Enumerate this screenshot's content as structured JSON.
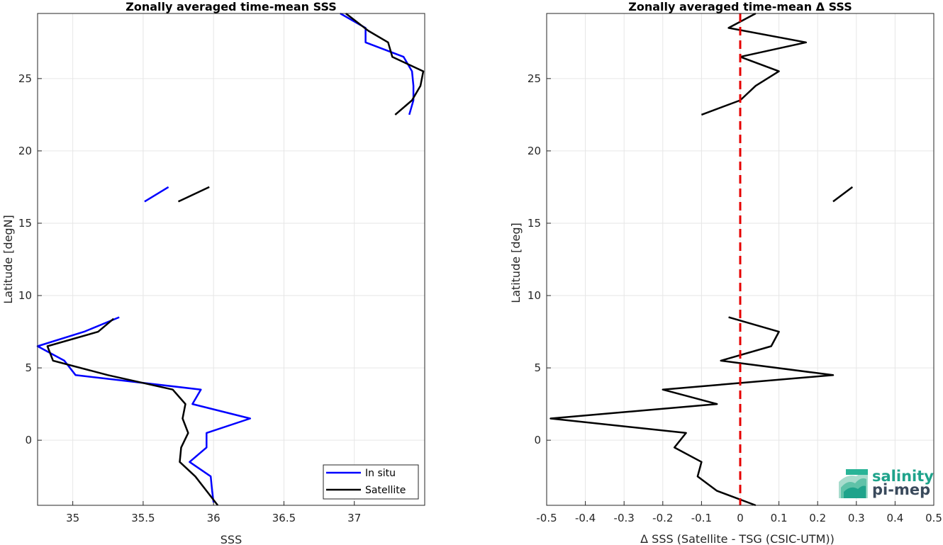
{
  "chart_data": [
    {
      "type": "line",
      "title": "Zonally averaged time-mean SSS",
      "xlabel": "SSS",
      "ylabel": "Latitude [degN]",
      "xlim": [
        34.75,
        37.5
      ],
      "ylim": [
        -4.5,
        29.5
      ],
      "xticks": [
        35,
        35.5,
        36,
        36.5,
        37
      ],
      "yticks": [
        0,
        5,
        10,
        15,
        20,
        25
      ],
      "grid": true,
      "legend": "bottom-right",
      "series": [
        {
          "name": "In situ",
          "color": "#0000ff",
          "segments": [
            [
              [
                36.0,
                -4.3
              ],
              [
                35.99,
                -3.5
              ],
              [
                35.98,
                -2.5
              ],
              [
                35.83,
                -1.5
              ],
              [
                35.95,
                -0.5
              ],
              [
                35.95,
                0.5
              ],
              [
                36.26,
                1.5
              ],
              [
                35.85,
                2.5
              ],
              [
                35.91,
                3.5
              ],
              [
                35.02,
                4.5
              ],
              [
                34.94,
                5.5
              ],
              [
                34.75,
                6.5
              ],
              [
                35.08,
                7.5
              ],
              [
                35.33,
                8.5
              ]
            ],
            [
              [
                35.51,
                16.5
              ],
              [
                35.68,
                17.5
              ]
            ],
            [
              [
                37.39,
                22.5
              ],
              [
                37.42,
                23.5
              ],
              [
                37.42,
                24.5
              ],
              [
                37.41,
                25.5
              ],
              [
                37.35,
                26.5
              ],
              [
                37.08,
                27.5
              ],
              [
                37.08,
                28.5
              ],
              [
                36.9,
                29.5
              ]
            ]
          ]
        },
        {
          "name": "Satellite",
          "color": "#000000",
          "segments": [
            [
              [
                36.03,
                -4.5
              ],
              [
                35.95,
                -3.5
              ],
              [
                35.87,
                -2.5
              ],
              [
                35.76,
                -1.5
              ],
              [
                35.77,
                -0.5
              ],
              [
                35.82,
                0.5
              ],
              [
                35.78,
                1.5
              ],
              [
                35.8,
                2.5
              ],
              [
                35.71,
                3.5
              ],
              [
                35.25,
                4.5
              ],
              [
                34.86,
                5.5
              ],
              [
                34.82,
                6.5
              ],
              [
                35.18,
                7.5
              ],
              [
                35.29,
                8.4
              ]
            ],
            [
              [
                35.75,
                16.5
              ],
              [
                35.97,
                17.5
              ]
            ],
            [
              [
                37.29,
                22.5
              ],
              [
                37.41,
                23.5
              ],
              [
                37.47,
                24.5
              ],
              [
                37.49,
                25.5
              ],
              [
                37.27,
                26.5
              ],
              [
                37.24,
                27.5
              ],
              [
                37.1,
                28.3
              ],
              [
                36.94,
                29.5
              ]
            ]
          ]
        }
      ]
    },
    {
      "type": "line",
      "title": "Zonally averaged time-mean Δ SSS",
      "xlabel": "Δ SSS (Satellite - TSG (CSIC-UTM))",
      "ylabel": "Latitude [deg]",
      "xlim": [
        -0.5,
        0.5
      ],
      "ylim": [
        -4.5,
        29.5
      ],
      "xticks": [
        -0.5,
        -0.4,
        -0.3,
        -0.2,
        -0.1,
        0,
        0.1,
        0.2,
        0.3,
        0.4,
        0.5
      ],
      "xticklabels": [
        "-0.5",
        "-0.4",
        "-0.3",
        "-0.2",
        "-0.1",
        "0",
        "0.1",
        "0.2",
        "0.3",
        "0.4",
        "0.5"
      ],
      "yticks": [
        0,
        5,
        10,
        15,
        20,
        25
      ],
      "grid": true,
      "reference_line": {
        "x": 0,
        "color": "#e60000",
        "style": "dashed"
      },
      "series": [
        {
          "color": "#000000",
          "segments": [
            [
              [
                0.04,
                -4.5
              ],
              [
                -0.06,
                -3.5
              ],
              [
                -0.11,
                -2.5
              ],
              [
                -0.1,
                -1.5
              ],
              [
                -0.17,
                -0.5
              ],
              [
                -0.14,
                0.5
              ],
              [
                -0.49,
                1.5
              ],
              [
                -0.06,
                2.5
              ],
              [
                -0.2,
                3.5
              ],
              [
                0.24,
                4.5
              ],
              [
                -0.05,
                5.5
              ],
              [
                0.08,
                6.5
              ],
              [
                0.1,
                7.5
              ],
              [
                -0.03,
                8.5
              ]
            ],
            [
              [
                0.24,
                16.5
              ],
              [
                0.29,
                17.5
              ]
            ],
            [
              [
                -0.1,
                22.5
              ],
              [
                0.0,
                23.5
              ],
              [
                0.04,
                24.5
              ],
              [
                0.1,
                25.5
              ],
              [
                0.0,
                26.5
              ],
              [
                0.17,
                27.5
              ],
              [
                -0.03,
                28.5
              ],
              [
                0.04,
                29.5
              ]
            ]
          ]
        }
      ]
    }
  ],
  "logo": {
    "line1": "salinity",
    "line2": "pi-mep",
    "color1": "#1fa38b",
    "color2": "#3a4a5c"
  }
}
